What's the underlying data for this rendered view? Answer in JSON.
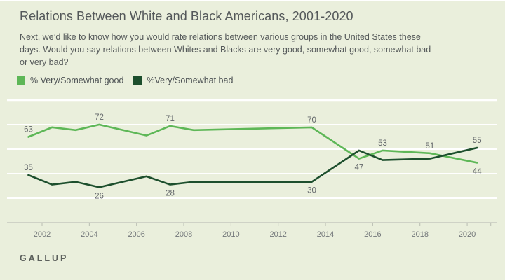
{
  "colors": {
    "background": "#eaefdc",
    "grid": "#ffffff",
    "axis": "#c6c9bf",
    "tick": "#b9bdb2",
    "good_line": "#5eb757",
    "bad_line": "#1d4f2d",
    "label_text": "#63676a"
  },
  "chart_data": {
    "type": "line",
    "title": "Relations Between White and Black Americans, 2001-2020",
    "subtitle_lines": [
      "Next, we’d like to know how you would rate relations between various groups in the United States these",
      "days. Would you say relations between Whites and Blacks are very good, somewhat good, somewhat bad",
      "or very bad?"
    ],
    "x_years": [
      2001,
      2002,
      2003,
      2004,
      2005,
      2006,
      2007,
      2008,
      2013,
      2015,
      2016,
      2018,
      2020
    ],
    "series": [
      {
        "id": "good",
        "name": "% Very/Somewhat good",
        "color": "#5eb757",
        "values": [
          63,
          70,
          68,
          72,
          68,
          64,
          71,
          68,
          70,
          47,
          53,
          51,
          44
        ]
      },
      {
        "id": "bad",
        "name": "%Very/Somewhat bad",
        "color": "#1d4f2d",
        "values": [
          35,
          28,
          30,
          26,
          30,
          34,
          28,
          30,
          30,
          53,
          46,
          47,
          55
        ]
      }
    ],
    "data_labels": [
      {
        "series": 0,
        "year": 2001,
        "value": "63",
        "position": "above"
      },
      {
        "series": 0,
        "year": 2004,
        "value": "72",
        "position": "above"
      },
      {
        "series": 0,
        "year": 2007,
        "value": "71",
        "position": "above"
      },
      {
        "series": 0,
        "year": 2013,
        "value": "70",
        "position": "above"
      },
      {
        "series": 0,
        "year": 2015,
        "value": "47",
        "position": "below"
      },
      {
        "series": 0,
        "year": 2016,
        "value": "53",
        "position": "above"
      },
      {
        "series": 0,
        "year": 2018,
        "value": "51",
        "position": "above"
      },
      {
        "series": 0,
        "year": 2020,
        "value": "44",
        "position": "below"
      },
      {
        "series": 1,
        "year": 2001,
        "value": "35",
        "position": "above"
      },
      {
        "series": 1,
        "year": 2004,
        "value": "26",
        "position": "below"
      },
      {
        "series": 1,
        "year": 2007,
        "value": "28",
        "position": "below"
      },
      {
        "series": 1,
        "year": 2013,
        "value": "30",
        "position": "below"
      },
      {
        "series": 1,
        "year": 2020,
        "value": "55",
        "position": "above"
      }
    ],
    "xticks": [
      2002,
      2004,
      2006,
      2008,
      2010,
      2012,
      2014,
      2016,
      2018,
      2020
    ],
    "xticks_unlabeled": [
      2021
    ],
    "ylim": [
      0,
      90
    ],
    "yticks": [
      18,
      36,
      54,
      72,
      90
    ],
    "grid": "horizontal-white-lines",
    "legend_position": "top-left",
    "source": "GALLUP"
  }
}
